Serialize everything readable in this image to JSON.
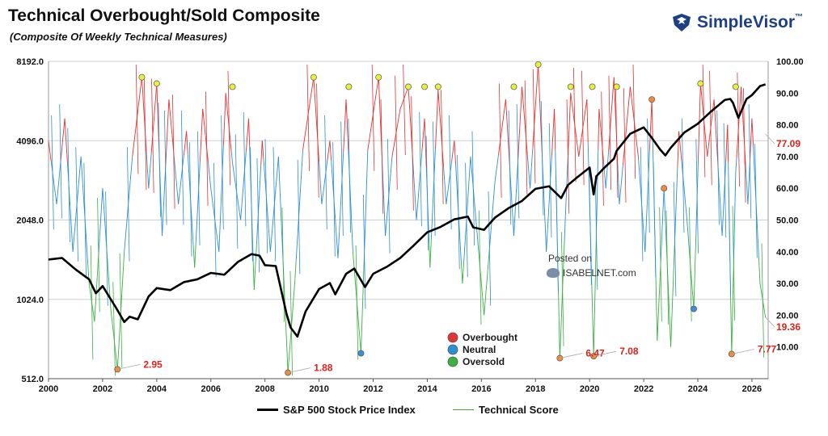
{
  "header": {
    "title": "Technical Overbought/Sold Composite",
    "subtitle": "(Composite Of Weekly Technical Measures)",
    "brand": "SimpleVisor",
    "brand_tm": "™"
  },
  "watermark": {
    "line1": "Posted on",
    "line2": "ISABELNET.com"
  },
  "legend_top": [
    {
      "label": "Overbought",
      "color": "#e53232"
    },
    {
      "label": "Neutral",
      "color": "#2b8fd6"
    },
    {
      "label": "Oversold",
      "color": "#3cb043"
    }
  ],
  "legend_bottom": [
    {
      "label": "S&P 500 Stock Price Index",
      "color": "#000000"
    },
    {
      "label": "Technical Score",
      "color": "#4ea23c"
    }
  ],
  "chart_data": {
    "type": "line",
    "x_range": [
      2000,
      2026.6
    ],
    "x_ticks": [
      "2000",
      "2002",
      "2004",
      "2006",
      "2008",
      "2010",
      "2012",
      "2014",
      "2016",
      "2018",
      "2020",
      "2022",
      "2024",
      "2026"
    ],
    "left_axis": {
      "scale": "log2",
      "range": [
        512,
        8192
      ],
      "ticks": [
        "512.0",
        "1024.0",
        "2048.0",
        "4096.0",
        "8192.0"
      ]
    },
    "right_axis": {
      "range": [
        0,
        100
      ],
      "ticks": [
        "10.00",
        "20.00",
        "30.00",
        "40.00",
        "50.00",
        "60.00",
        "70.00",
        "80.00",
        "90.00",
        "100.00"
      ]
    },
    "grid": "horizontal",
    "colors": {
      "overbought": "#e53232",
      "neutral": "#2b8fd6",
      "oversold": "#3cb043",
      "sp500": "#000000"
    },
    "series": [
      {
        "name": "S&P 500 Stock Price Index",
        "axis": "left",
        "x": [
          2000.0,
          2000.5,
          2001.0,
          2001.5,
          2001.75,
          2002.0,
          2002.5,
          2002.8,
          2003.0,
          2003.3,
          2003.7,
          2004.0,
          2004.5,
          2005.0,
          2005.5,
          2006.0,
          2006.5,
          2007.0,
          2007.5,
          2007.8,
          2008.0,
          2008.4,
          2008.8,
          2008.95,
          2009.2,
          2009.5,
          2010.0,
          2010.4,
          2010.6,
          2011.0,
          2011.3,
          2011.7,
          2012.0,
          2012.5,
          2013.0,
          2013.5,
          2014.0,
          2014.5,
          2015.0,
          2015.5,
          2015.7,
          2016.1,
          2016.5,
          2017.0,
          2017.5,
          2018.0,
          2018.5,
          2018.95,
          2019.2,
          2019.5,
          2020.0,
          2020.15,
          2020.25,
          2020.5,
          2020.9,
          2021.0,
          2021.5,
          2022.0,
          2022.3,
          2022.6,
          2022.8,
          2023.0,
          2023.5,
          2024.0,
          2024.5,
          2025.0,
          2025.2,
          2025.3,
          2025.5,
          2025.8,
          2026.0,
          2026.3,
          2026.5
        ],
        "values": [
          1450,
          1470,
          1330,
          1220,
          1080,
          1150,
          950,
          840,
          880,
          860,
          1050,
          1130,
          1110,
          1190,
          1220,
          1290,
          1270,
          1420,
          1520,
          1500,
          1380,
          1370,
          900,
          800,
          740,
          920,
          1120,
          1180,
          1070,
          1280,
          1340,
          1140,
          1280,
          1360,
          1470,
          1640,
          1840,
          1930,
          2060,
          2110,
          1920,
          1880,
          2090,
          2270,
          2420,
          2690,
          2750,
          2480,
          2780,
          2950,
          3240,
          2560,
          3000,
          3200,
          3500,
          3750,
          4350,
          4600,
          4200,
          3800,
          3600,
          3850,
          4400,
          4750,
          5300,
          5850,
          5900,
          5700,
          5000,
          5900,
          6100,
          6600,
          6700
        ]
      },
      {
        "name": "Technical Score",
        "axis": "right",
        "x": [
          2000.0,
          2000.3,
          2000.6,
          2000.9,
          2001.2,
          2001.5,
          2001.7,
          2002.0,
          2002.3,
          2002.55,
          2002.8,
          2003.1,
          2003.45,
          2003.7,
          2004.0,
          2004.2,
          2004.45,
          2004.8,
          2005.1,
          2005.4,
          2005.7,
          2006.0,
          2006.3,
          2006.55,
          2006.8,
          2007.1,
          2007.4,
          2007.6,
          2007.9,
          2008.2,
          2008.5,
          2008.85,
          2009.1,
          2009.4,
          2009.8,
          2010.1,
          2010.4,
          2010.7,
          2011.0,
          2011.25,
          2011.55,
          2011.8,
          2012.2,
          2012.45,
          2012.7,
          2013.0,
          2013.3,
          2013.6,
          2013.9,
          2014.1,
          2014.4,
          2014.7,
          2015.0,
          2015.3,
          2015.6,
          2015.8,
          2016.1,
          2016.5,
          2016.9,
          2017.2,
          2017.5,
          2017.8,
          2018.1,
          2018.4,
          2018.7,
          2018.9,
          2019.1,
          2019.3,
          2019.6,
          2019.9,
          2020.15,
          2020.35,
          2020.6,
          2020.9,
          2021.1,
          2021.5,
          2021.8,
          2022.05,
          2022.3,
          2022.5,
          2022.75,
          2023.0,
          2023.3,
          2023.6,
          2023.85,
          2024.1,
          2024.35,
          2024.6,
          2024.9,
          2025.1,
          2025.25,
          2025.4,
          2025.6,
          2025.85,
          2026.0,
          2026.3,
          2026.5
        ],
        "values": [
          75,
          55,
          82,
          40,
          70,
          30,
          18,
          60,
          22,
          2.95,
          40,
          70,
          95,
          60,
          93,
          45,
          88,
          55,
          78,
          35,
          85,
          60,
          40,
          90,
          68,
          50,
          82,
          28,
          75,
          40,
          70,
          1.88,
          30,
          72,
          95,
          55,
          75,
          38,
          88,
          40,
          8,
          72,
          95,
          45,
          70,
          85,
          92,
          50,
          82,
          35,
          91,
          55,
          75,
          30,
          70,
          50,
          20,
          62,
          88,
          45,
          92,
          60,
          99,
          40,
          85,
          6.47,
          50,
          90,
          70,
          88,
          7.08,
          85,
          60,
          95,
          55,
          92,
          70,
          40,
          88,
          12,
          60,
          10,
          78,
          50,
          22,
          93,
          70,
          88,
          45,
          80,
          7.77,
          65,
          92,
          55,
          82,
          30,
          19.36
        ]
      }
    ],
    "marker_groups": [
      {
        "state": "Overbought",
        "x": [
          2003.45,
          2004.0,
          2006.8,
          2009.8,
          2011.1,
          2012.2,
          2013.3,
          2013.9,
          2014.4,
          2017.2,
          2018.1,
          2019.3,
          2020.1,
          2021.0,
          2024.1,
          2025.4
        ]
      },
      {
        "state": "Neutral",
        "x": [
          2011.55,
          2023.85
        ]
      },
      {
        "state": "Oversold",
        "x": [
          2002.55,
          2008.85,
          2018.9,
          2020.15,
          2022.3,
          2022.75,
          2025.25
        ]
      }
    ],
    "callouts": [
      {
        "x": 2002.55,
        "value": 2.95,
        "label": "2.95"
      },
      {
        "x": 2008.85,
        "value": 1.88,
        "label": "1.88"
      },
      {
        "x": 2018.9,
        "value": 6.47,
        "label": "6.47"
      },
      {
        "x": 2020.15,
        "value": 7.08,
        "label": "7.08"
      },
      {
        "x": 2025.25,
        "value": 7.77,
        "label": "7.77"
      },
      {
        "x": 2026.5,
        "value": 19.36,
        "label": "19.36"
      },
      {
        "x": 2026.5,
        "value": 77.09,
        "label": "77.09"
      }
    ]
  }
}
